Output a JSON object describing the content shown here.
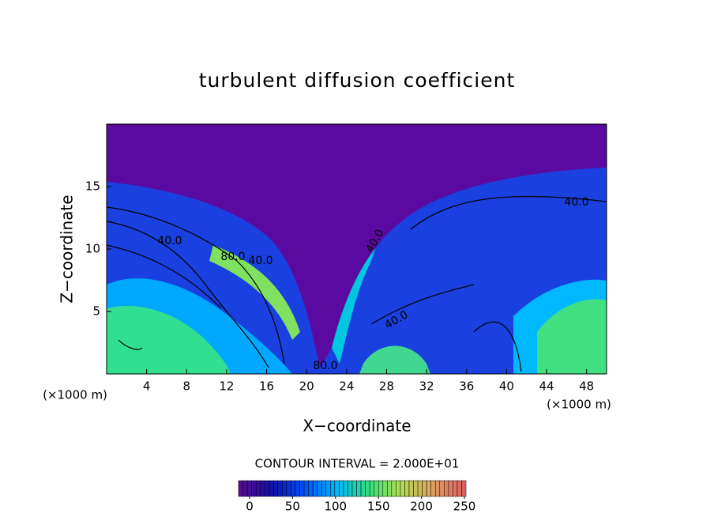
{
  "chart_data": {
    "type": "contour",
    "title": "turbulent diffusion coefficient",
    "x_label": "X−coordinate",
    "y_label": "Z−coordinate",
    "x_unit_left": "(×1000 m)",
    "x_unit_right": "(×1000 m)",
    "xlim": [
      0,
      50
    ],
    "xticks": [
      4,
      8,
      12,
      16,
      20,
      24,
      28,
      32,
      36,
      40,
      44,
      48
    ],
    "ylim": [
      0,
      20
    ],
    "yticks": [
      5,
      10,
      15
    ],
    "contour_labels": [
      "40.0",
      "80.0",
      "40.0",
      "40.0",
      "40.0",
      "40.0",
      "80.0"
    ],
    "contour_interval_label": "CONTOUR INTERVAL = 2.000E+01",
    "colorbar": {
      "lim": [
        0,
        250
      ],
      "ticks": [
        0,
        50,
        100,
        150,
        200,
        250
      ],
      "colors": [
        "#5a0a96",
        "#1010a8",
        "#0050ff",
        "#00b8ff",
        "#30e080",
        "#b0e050",
        "#e0a060",
        "#e06060"
      ]
    }
  }
}
